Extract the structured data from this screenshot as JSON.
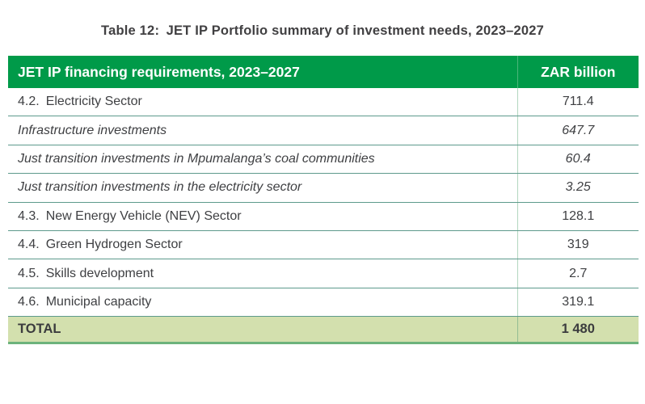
{
  "title": "Table 12: JET IP Portfolio summary of investment needs, 2023–2027",
  "table": {
    "header": {
      "requirements": "JET IP financing requirements, 2023–2027",
      "unit": "ZAR billion"
    },
    "rows": [
      {
        "label": "4.2. Electricity Sector",
        "value": "711.4",
        "style": "normal"
      },
      {
        "label": "Infrastructure investments",
        "value": "647.7",
        "style": "italic"
      },
      {
        "label": "Just transition investments in Mpumalanga’s coal communities",
        "value": "60.4",
        "style": "italic"
      },
      {
        "label": "Just transition investments in the electricity sector",
        "value": "3.25",
        "style": "italic"
      },
      {
        "label": "4.3. New Energy Vehicle (NEV) Sector",
        "value": "128.1",
        "style": "normal"
      },
      {
        "label": "4.4. Green Hydrogen Sector",
        "value": "319",
        "style": "normal"
      },
      {
        "label": "4.5. Skills development",
        "value": "2.7",
        "style": "normal"
      },
      {
        "label": "4.6. Municipal capacity",
        "value": "319.1",
        "style": "normal"
      }
    ],
    "total": {
      "label": "TOTAL",
      "value": "1 480"
    }
  },
  "colors": {
    "header_green": "#009a49",
    "header_text": "#ffffff",
    "total_row_bg": "#d3e0ae",
    "total_bottom_border": "#6db37c",
    "row_separator": "#5d9a8c",
    "column_divider": "#b2d7bf",
    "body_text": "#3f4043"
  }
}
